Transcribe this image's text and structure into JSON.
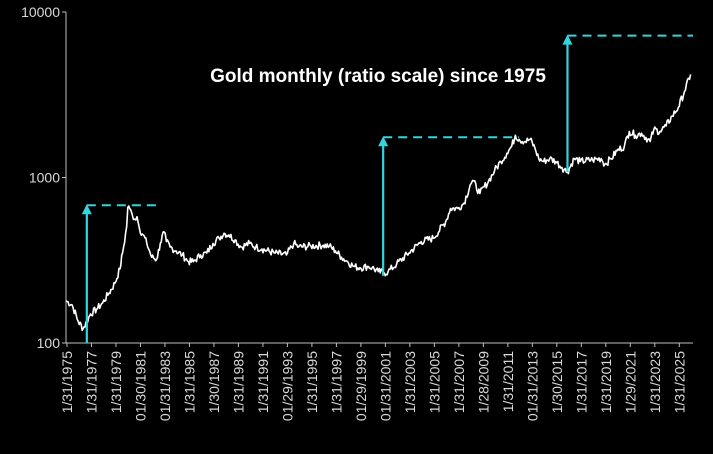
{
  "chart_data": {
    "type": "line",
    "title": "Gold monthly (ratio scale) since 1975",
    "yscale": "log",
    "ylim": [
      100,
      10000
    ],
    "yticks": [
      100,
      1000,
      10000
    ],
    "ytick_labels": [
      "100",
      "1000",
      "10000"
    ],
    "xlim": [
      1975.0,
      2026.2
    ],
    "xtick_labels": [
      "1/31/1975",
      "1/31/1977",
      "1/31/1979",
      "01/30/1981",
      "01/31/1983",
      "1/31/1985",
      "1/30/1987",
      "1/31/1989",
      "1/31/1991",
      "01/29/1993",
      "1/31/1995",
      "1/31/1997",
      "01/29/1999",
      "01/31/2001",
      "1/31/2003",
      "1/31/2005",
      "1/31/2007",
      "1/28/2009",
      "1/31/2011",
      "01/31/2013",
      "1/30/2015",
      "1/31/2017",
      "1/31/2019",
      "1/29/2021",
      "1/31/2023",
      "1/31/2025"
    ],
    "xtick_years": [
      1975.08,
      1977.08,
      1979.08,
      1981.08,
      1983.08,
      1985.08,
      1987.08,
      1989.08,
      1991.08,
      1993.08,
      1995.08,
      1997.08,
      1999.08,
      2001.08,
      2003.08,
      2005.08,
      2007.08,
      2009.08,
      2011.08,
      2013.08,
      2015.08,
      2017.08,
      2019.08,
      2021.08,
      2023.08,
      2025.08
    ],
    "grid": false,
    "legend": "none",
    "colors": {
      "background": "#000000",
      "line": "#ffffff",
      "annotation": "#33d6e0",
      "axis": "#bfbfbf"
    },
    "series": [
      {
        "x": [
          1975.0,
          1975.5,
          1976.0,
          1976.4,
          1976.7,
          1977.0,
          1977.5,
          1978.0,
          1978.5,
          1979.0,
          1979.4,
          1979.7,
          1979.95,
          1980.05,
          1980.2,
          1980.4,
          1980.6,
          1980.8,
          1981.0,
          1981.3,
          1981.6,
          1982.0,
          1982.4,
          1982.7,
          1983.0,
          1983.2,
          1983.5,
          1984.0,
          1984.5,
          1985.0,
          1985.4,
          1986.0,
          1986.5,
          1987.0,
          1987.5,
          1987.9,
          1988.3,
          1988.8,
          1989.3,
          1990.0,
          1990.5,
          1991.0,
          1992.0,
          1993.0,
          1993.6,
          1994.0,
          1995.0,
          1996.0,
          1996.5,
          1997.0,
          1997.5,
          1998.0,
          1998.5,
          1999.0,
          1999.7,
          2000.0,
          2000.5,
          2001.0,
          2001.3,
          2002.0,
          2003.0,
          2004.0,
          2005.0,
          2006.0,
          2006.4,
          2007.0,
          2007.5,
          2008.0,
          2008.2,
          2008.8,
          2009.5,
          2010.0,
          2010.5,
          2011.0,
          2011.4,
          2011.7,
          2012.0,
          2012.5,
          2012.9,
          2013.3,
          2013.6,
          2014.0,
          2014.5,
          2015.0,
          2015.5,
          2015.95,
          2016.5,
          2017.0,
          2018.0,
          2018.7,
          2019.0,
          2019.5,
          2020.0,
          2020.6,
          2021.0,
          2021.5,
          2022.0,
          2022.7,
          2023.0,
          2023.5,
          2024.0,
          2024.5,
          2025.0,
          2025.5,
          2026.0
        ],
        "y": [
          180,
          170,
          135,
          122,
          135,
          150,
          160,
          175,
          200,
          230,
          280,
          380,
          500,
          660,
          650,
          600,
          560,
          580,
          490,
          450,
          400,
          330,
          320,
          400,
          470,
          410,
          380,
          360,
          340,
          310,
          310,
          340,
          350,
          400,
          430,
          460,
          450,
          420,
          380,
          400,
          380,
          370,
          350,
          340,
          400,
          380,
          385,
          390,
          385,
          360,
          330,
          310,
          290,
          285,
          290,
          285,
          270,
          265,
          270,
          300,
          350,
          410,
          430,
          540,
          650,
          650,
          700,
          900,
          960,
          800,
          950,
          1100,
          1250,
          1400,
          1550,
          1800,
          1700,
          1650,
          1700,
          1500,
          1300,
          1250,
          1300,
          1250,
          1150,
          1080,
          1300,
          1250,
          1280,
          1300,
          1200,
          1300,
          1450,
          1550,
          1900,
          1800,
          1850,
          1650,
          1950,
          1900,
          2050,
          2350,
          2650,
          3300,
          4200
        ]
      }
    ],
    "annotations": [
      {
        "type": "arrow",
        "x": 1976.7,
        "from": 100,
        "to": 680,
        "line_to_x": 1982.6
      },
      {
        "type": "arrow",
        "x": 2000.9,
        "from": 255,
        "to": 1750,
        "line_to_x": 2012.0
      },
      {
        "type": "arrow",
        "x": 2015.95,
        "from": 1080,
        "to": 7200,
        "line_to_x": 2026.2
      }
    ]
  }
}
